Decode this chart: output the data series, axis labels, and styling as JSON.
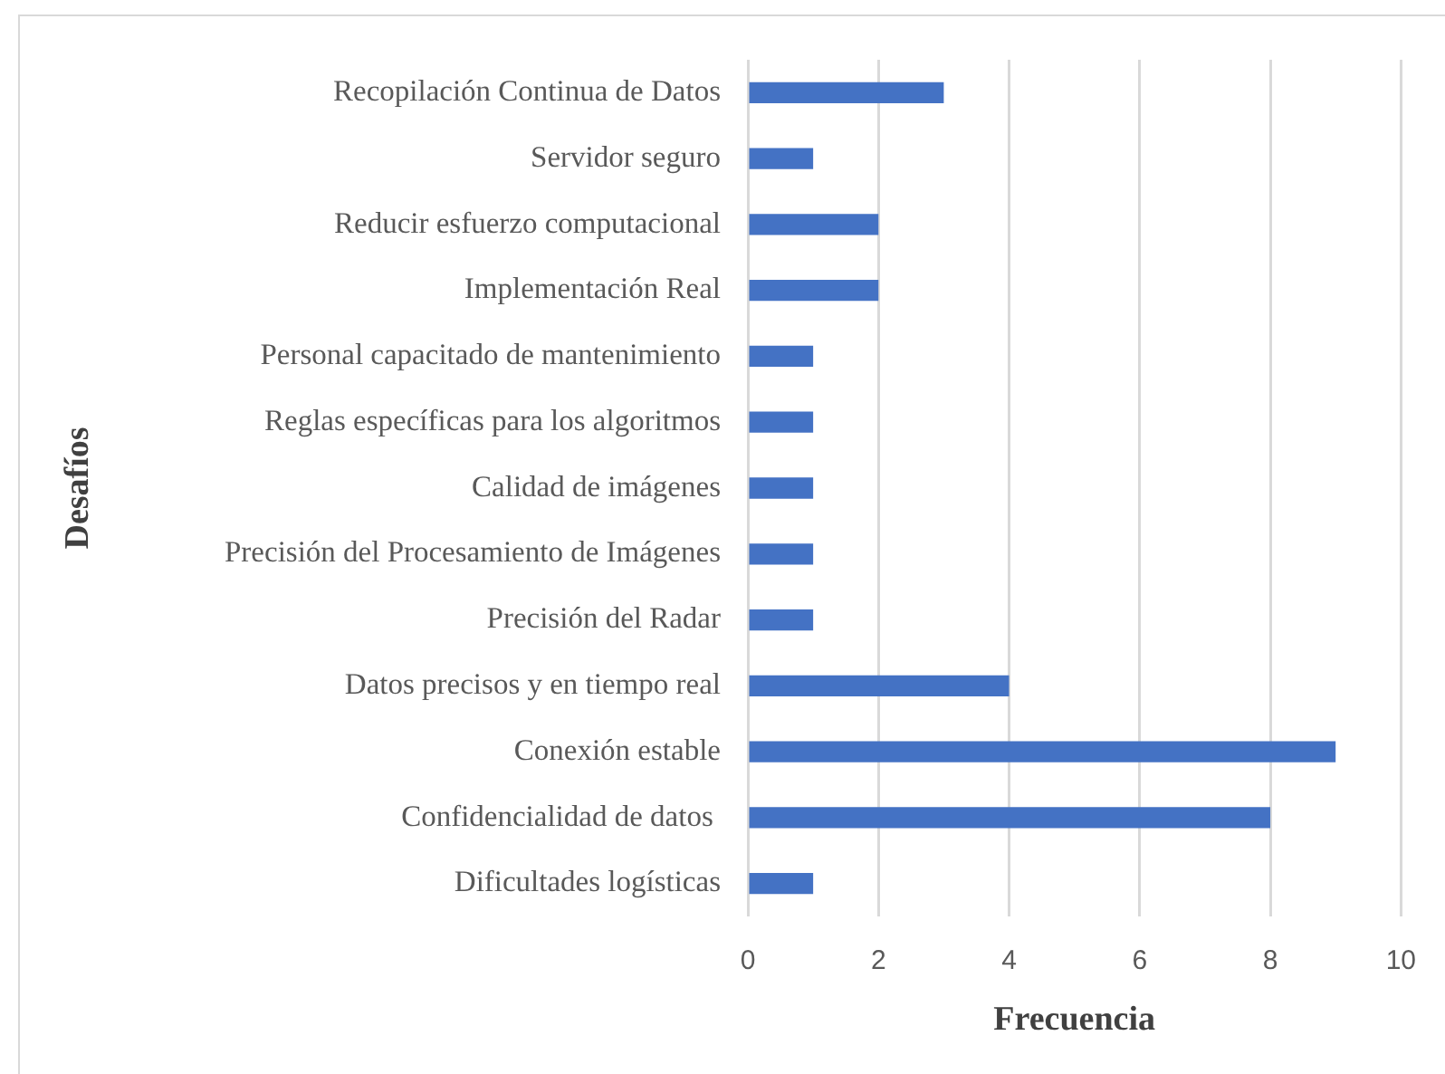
{
  "chart_data": {
    "type": "bar",
    "orientation": "horizontal",
    "xlabel": "Frecuencia",
    "ylabel": "Desafíos",
    "categories": [
      "Recopilación Continua de Datos",
      "Servidor seguro",
      "Reducir esfuerzo computacional",
      "Implementación Real",
      "Personal capacitado de mantenimiento",
      "Reglas específicas para los algoritmos",
      "Calidad de imágenes",
      "Precisión del Procesamiento de Imágenes",
      "Precisión del Radar",
      "Datos precisos y en tiempo real",
      "Conexión estable",
      "Confidencialidad de datos ",
      "Dificultades logísticas"
    ],
    "values": [
      3,
      1,
      2,
      2,
      1,
      1,
      1,
      1,
      1,
      4,
      9,
      8,
      1
    ],
    "color": "#4472c4",
    "xlim": [
      0,
      10
    ],
    "xticks": [
      0,
      2,
      4,
      6,
      8,
      10
    ],
    "grid": "x"
  }
}
